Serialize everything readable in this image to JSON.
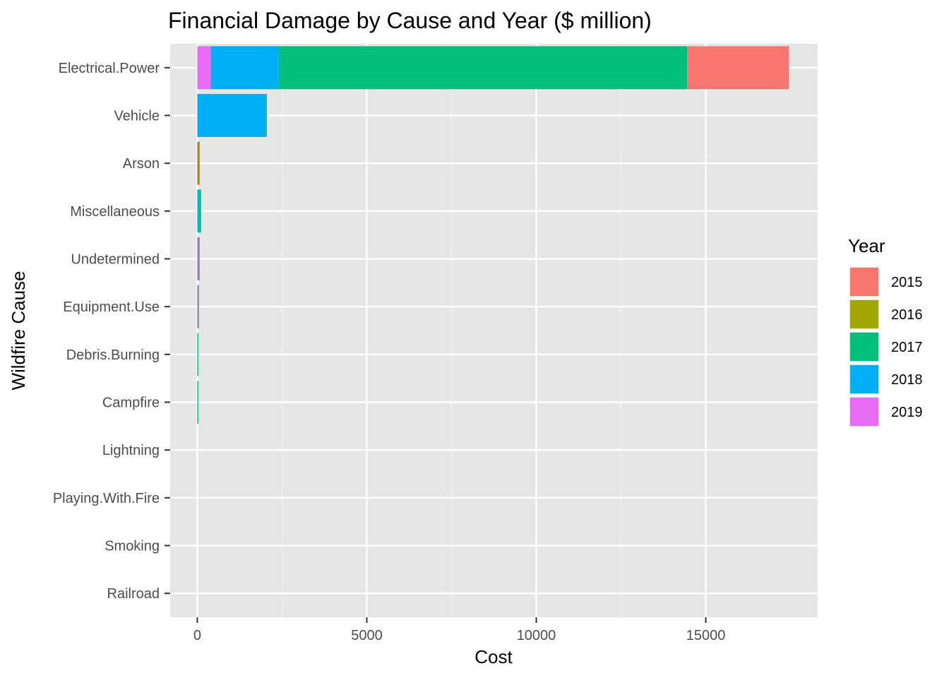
{
  "chart_data": {
    "type": "bar",
    "orientation": "horizontal",
    "stacked": true,
    "title": "Financial Damage by Cause and Year ($ million)",
    "xlabel": "Cost",
    "ylabel": "Wildfire Cause",
    "xlim": [
      -800,
      18300
    ],
    "x_ticks": [
      0,
      5000,
      10000,
      15000
    ],
    "x_tick_labels": [
      "0",
      "5000",
      "10000",
      "15000"
    ],
    "grid": true,
    "background": "#e6e6e6",
    "legend": {
      "title": "Year",
      "position": "right"
    },
    "categories": [
      "Electrical.Power",
      "Vehicle",
      "Arson",
      "Miscellaneous",
      "Undetermined",
      "Equipment.Use",
      "Debris.Burning",
      "Campfire",
      "Lightning",
      "Playing.With.Fire",
      "Smoking",
      "Railroad"
    ],
    "stack_order": [
      "2019",
      "2018",
      "2017",
      "2016",
      "2015"
    ],
    "series": [
      {
        "name": "2015",
        "color": "#f8766d",
        "values": [
          3000,
          0,
          0,
          0,
          0,
          0,
          0,
          0,
          0,
          0,
          0,
          0
        ]
      },
      {
        "name": "2016",
        "color": "#a3a500",
        "values": [
          0,
          0,
          70,
          0,
          0,
          0,
          0,
          0,
          0,
          0,
          0,
          0
        ]
      },
      {
        "name": "2017",
        "color": "#00bf7d",
        "values": [
          12050,
          25,
          0,
          60,
          0,
          0,
          15,
          20,
          0,
          0,
          0,
          0
        ]
      },
      {
        "name": "2018",
        "color": "#00b0f6",
        "values": [
          2000,
          2020,
          0,
          50,
          40,
          30,
          0,
          0,
          0,
          0,
          0,
          0
        ]
      },
      {
        "name": "2019",
        "color": "#e76bf3",
        "values": [
          400,
          0,
          0,
          0,
          30,
          20,
          0,
          0,
          0,
          0,
          0,
          0
        ]
      }
    ],
    "other_colors": {
      "Arson": "#a08a30",
      "Undetermined": "#8e7fa8",
      "Equipment.Use": "#8a8aa0"
    }
  }
}
